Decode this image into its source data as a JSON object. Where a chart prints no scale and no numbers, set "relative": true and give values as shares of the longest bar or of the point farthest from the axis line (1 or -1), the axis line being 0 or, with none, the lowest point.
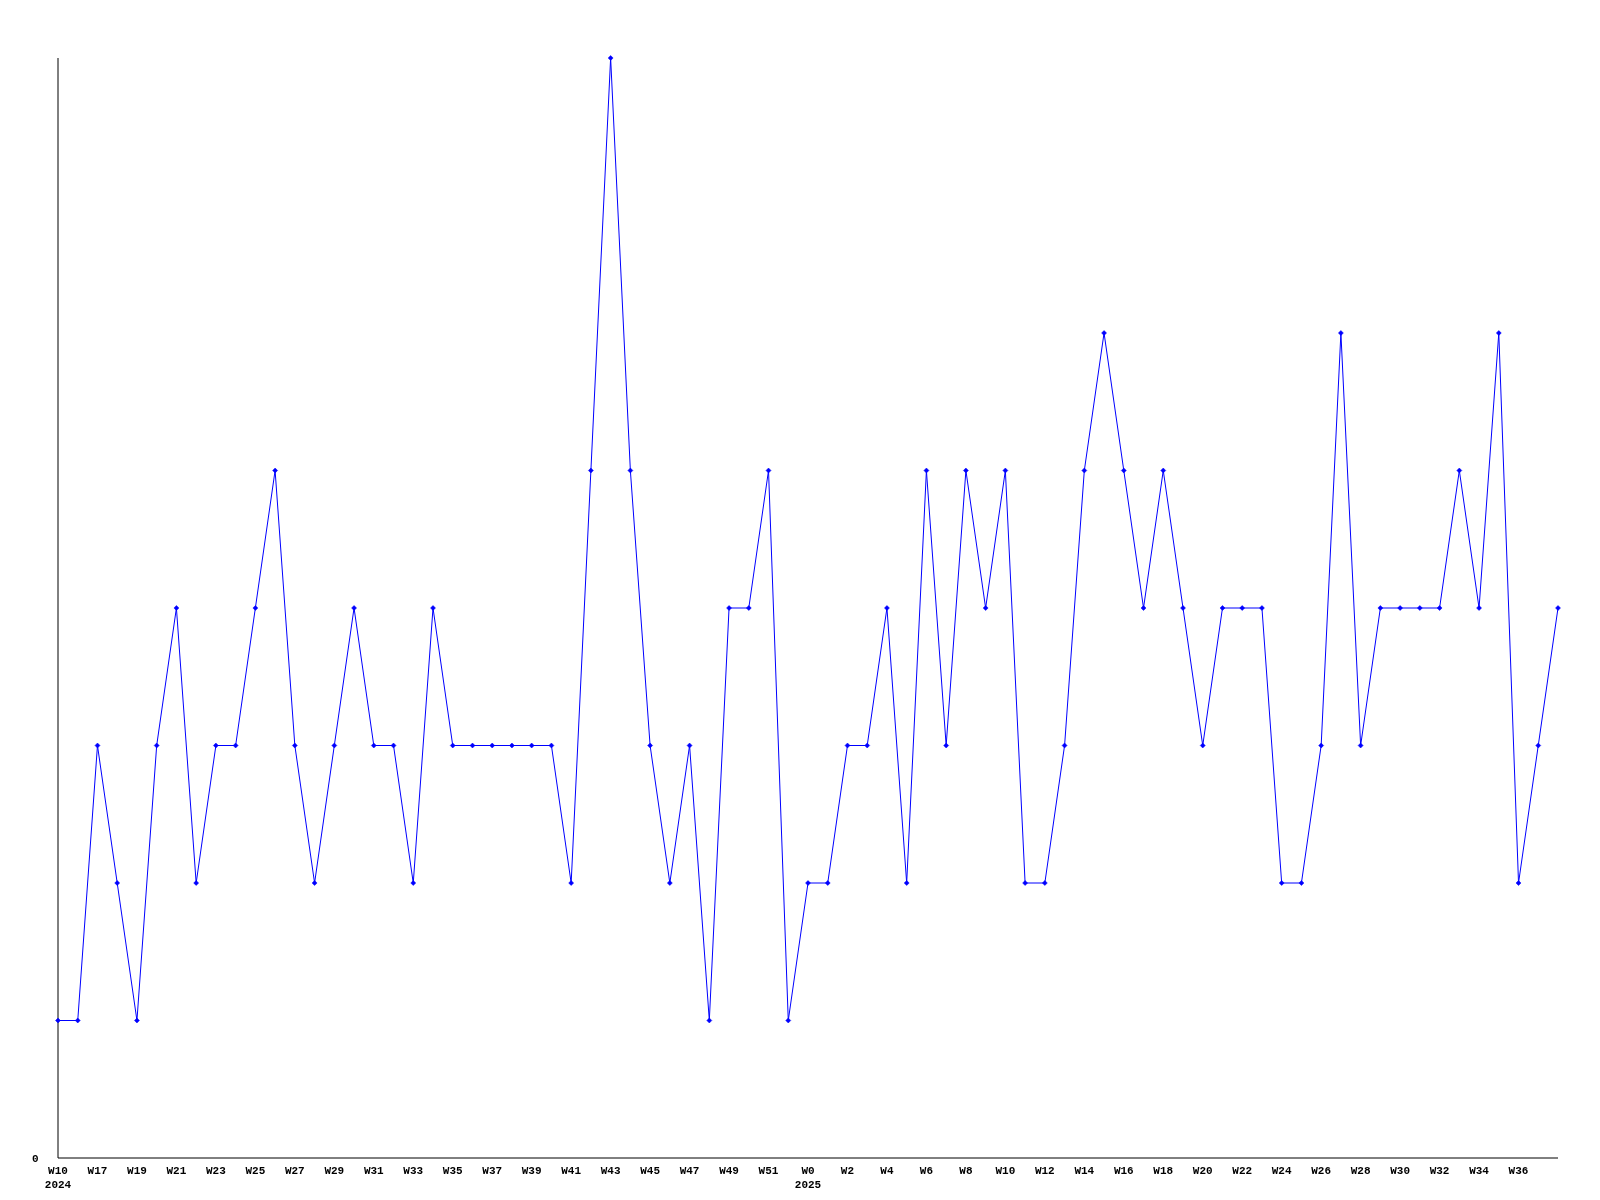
{
  "chart_data": {
    "type": "line",
    "relative": true,
    "marker": "diamond",
    "categories": [
      "W10\n2024",
      null,
      "W17",
      null,
      "W19",
      null,
      "W21",
      null,
      "W23",
      null,
      "W25",
      null,
      "W27",
      null,
      "W29",
      null,
      "W31",
      null,
      "W33",
      null,
      "W35",
      null,
      "W37",
      null,
      "W39",
      null,
      "W41",
      null,
      "W43",
      null,
      "W45",
      null,
      "W47",
      null,
      "W49",
      null,
      "W51",
      null,
      "W0\n2025",
      null,
      "W2",
      null,
      "W4",
      null,
      "W6",
      null,
      "W8",
      null,
      "W10",
      null,
      "W12",
      null,
      "W14",
      null,
      "W16",
      null,
      "W18",
      null,
      "W20",
      null,
      "W22",
      null,
      "W24",
      null,
      "W26",
      null,
      "W28",
      null,
      "W30",
      null,
      "W32",
      null,
      "W34",
      null,
      "W36",
      null,
      null
    ],
    "series": [
      {
        "color": "#0000ff",
        "values": [
          0.125,
          0.125,
          0.375,
          0.25,
          0.125,
          0.375,
          0.5,
          0.25,
          0.375,
          0.375,
          0.5,
          0.625,
          0.375,
          0.25,
          0.375,
          0.5,
          0.375,
          0.375,
          0.25,
          0.5,
          0.375,
          0.375,
          0.375,
          0.375,
          0.375,
          0.375,
          0.25,
          0.625,
          1,
          0.625,
          0.375,
          0.25,
          0.375,
          0.125,
          0.5,
          0.5,
          0.625,
          0.125,
          0.25,
          0.25,
          0.375,
          0.375,
          0.5,
          0.25,
          0.625,
          0.375,
          0.625,
          0.5,
          0.625,
          0.25,
          0.25,
          0.375,
          0.625,
          0.75,
          0.625,
          0.5,
          0.625,
          0.5,
          0.375,
          0.5,
          0.5,
          0.5,
          0.25,
          0.25,
          0.375,
          0.75,
          0.375,
          0.5,
          0.5,
          0.5,
          0.5,
          0.625,
          0.5,
          0.75,
          0.25,
          0.375,
          0.5
        ]
      }
    ],
    "annotations": [
      "0"
    ]
  }
}
